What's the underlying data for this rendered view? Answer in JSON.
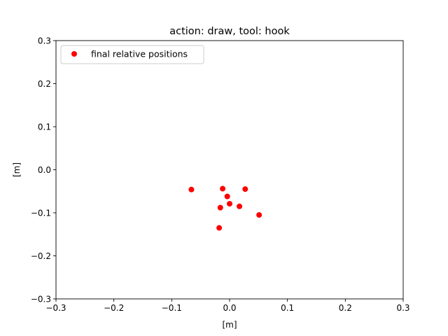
{
  "chart_data": {
    "type": "scatter",
    "title": "action: draw, tool: hook",
    "xlabel": "[m]",
    "ylabel": "[m]",
    "xlim": [
      -0.3,
      0.3
    ],
    "ylim": [
      -0.3,
      0.3
    ],
    "x_ticks": [
      -0.3,
      -0.2,
      -0.1,
      0.0,
      0.1,
      0.2,
      0.3
    ],
    "y_ticks": [
      -0.3,
      -0.2,
      -0.1,
      0.0,
      0.1,
      0.2,
      0.3
    ],
    "x_tick_labels": [
      "−0.3",
      "−0.2",
      "−0.1",
      "0.0",
      "0.1",
      "0.2",
      "0.3"
    ],
    "y_tick_labels": [
      "−0.3",
      "−0.2",
      "−0.1",
      "0.0",
      "0.1",
      "0.2",
      "0.3"
    ],
    "grid": false,
    "legend_position": "upper-left",
    "series": [
      {
        "name": "final relative positions",
        "color": "#ff0000",
        "points": [
          {
            "x": -0.066,
            "y": -0.046
          },
          {
            "x": -0.012,
            "y": -0.044
          },
          {
            "x": 0.027,
            "y": -0.045
          },
          {
            "x": -0.004,
            "y": -0.062
          },
          {
            "x": 0.0,
            "y": -0.079
          },
          {
            "x": -0.016,
            "y": -0.088
          },
          {
            "x": 0.017,
            "y": -0.085
          },
          {
            "x": 0.051,
            "y": -0.105
          },
          {
            "x": -0.018,
            "y": -0.135
          }
        ]
      }
    ]
  }
}
